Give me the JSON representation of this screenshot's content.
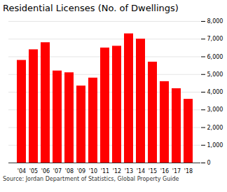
{
  "chart_data": {
    "type": "bar",
    "title": "Residential Licenses (No. of Dwellings)",
    "caption": "Source: Jordan Department of Statistics, Global Property Guide",
    "categories": [
      "'04",
      "'05",
      "'06",
      "'07",
      "'08",
      "'09",
      "'10",
      "'11",
      "'12",
      "'13",
      "'14",
      "'15",
      "'16",
      "'17",
      "'18"
    ],
    "values": [
      5800,
      6400,
      6800,
      5200,
      5100,
      4350,
      4800,
      6500,
      6600,
      7300,
      7000,
      5700,
      4600,
      4200,
      3600
    ],
    "color": "#ff0000",
    "ylim": [
      0,
      8000
    ],
    "yticks": [
      0,
      {
        "value": 1000,
        "label": "1,000"
      },
      {
        "value": 2000,
        "label": "2,000"
      },
      {
        "value": 3000,
        "label": "3,000"
      },
      {
        "value": 4000,
        "label": "4,000"
      },
      {
        "value": 5000,
        "label": "5,000"
      },
      {
        "value": 6000,
        "label": "6,000"
      },
      {
        "value": 7000,
        "label": "7,000"
      },
      {
        "value": 8000,
        "label": "8,000"
      }
    ],
    "grid": true
  }
}
